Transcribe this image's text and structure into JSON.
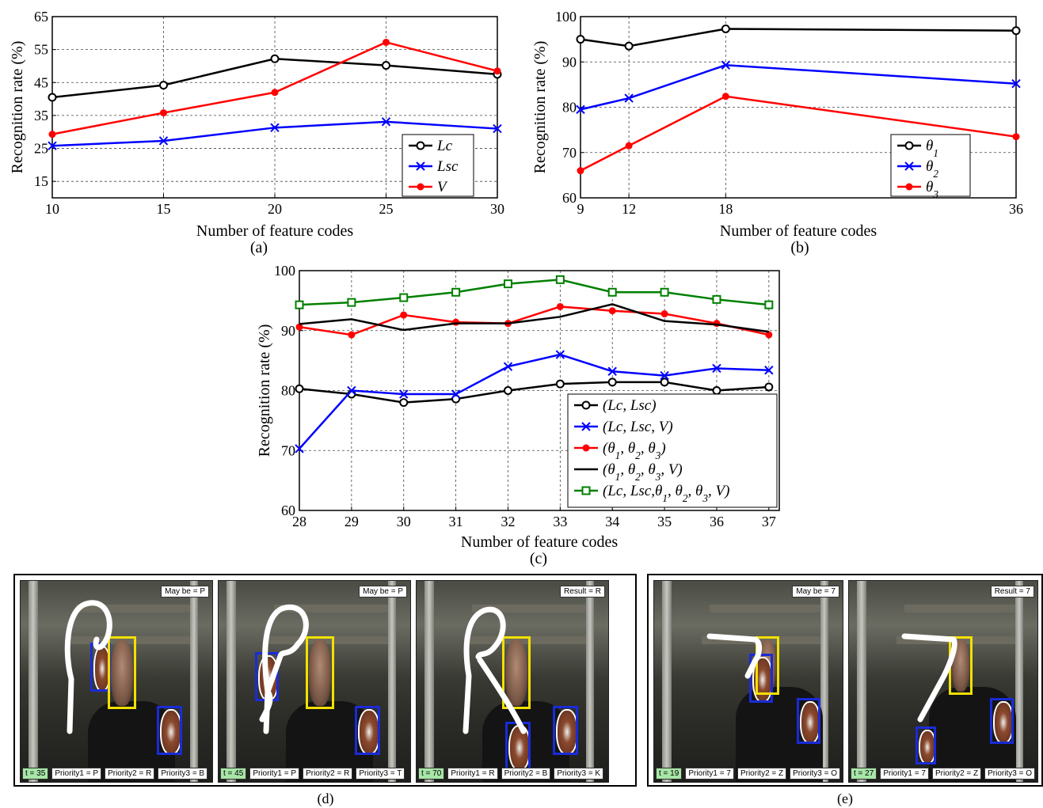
{
  "chart_data": [
    {
      "id": "a",
      "type": "line",
      "caption": "(a)",
      "xlabel": "Number of feature codes",
      "ylabel": "Recognition rate (%)",
      "x": [
        10,
        15,
        20,
        25,
        30
      ],
      "xticks": [
        "10",
        "15",
        "20",
        "25",
        "30"
      ],
      "xlim": [
        10,
        30
      ],
      "ylim": [
        10,
        65
      ],
      "yticks": [
        15,
        25,
        35,
        45,
        55,
        65
      ],
      "grid": true,
      "legend_position": "bottom-right",
      "series": [
        {
          "name": "Lc",
          "color": "#000000",
          "marker": "circle",
          "values": [
            40.5,
            44.2,
            52.2,
            50.2,
            47.5
          ]
        },
        {
          "name": "Lsc",
          "color": "#0000ff",
          "marker": "x",
          "values": [
            25.8,
            27.3,
            31.3,
            33.1,
            31.0
          ]
        },
        {
          "name": "V",
          "color": "#ff0000",
          "marker": "dot",
          "values": [
            29.3,
            35.8,
            42.0,
            57.2,
            48.5
          ]
        }
      ]
    },
    {
      "id": "b",
      "type": "line",
      "caption": "(b)",
      "xlabel": "Number of feature codes",
      "ylabel": "Recognition rate (%)",
      "x": [
        9,
        12,
        18,
        36
      ],
      "xticks": [
        "9",
        "12",
        "18",
        "36"
      ],
      "xlim": [
        9,
        36
      ],
      "ylim": [
        60,
        100
      ],
      "yticks": [
        60,
        70,
        80,
        90,
        100
      ],
      "grid": true,
      "legend_position": "bottom-right",
      "series": [
        {
          "name": "θ1",
          "color": "#000000",
          "marker": "circle",
          "values": [
            95.0,
            93.5,
            97.3,
            96.9
          ]
        },
        {
          "name": "θ2",
          "color": "#0000ff",
          "marker": "x",
          "values": [
            79.5,
            82.0,
            89.3,
            85.2
          ]
        },
        {
          "name": "θ3",
          "color": "#ff0000",
          "marker": "dot",
          "values": [
            66.0,
            71.5,
            82.4,
            73.5
          ]
        }
      ]
    },
    {
      "id": "c",
      "type": "line",
      "caption": "(c)",
      "xlabel": "Number of feature codes",
      "ylabel": "Recognition rate (%)",
      "x": [
        28,
        29,
        30,
        31,
        32,
        33,
        34,
        35,
        36,
        37
      ],
      "xticks": [
        "28",
        "29",
        "30",
        "31",
        "32",
        "33",
        "34",
        "35",
        "36",
        "37"
      ],
      "xlim": [
        28,
        37.2
      ],
      "ylim": [
        60,
        100
      ],
      "yticks": [
        60,
        70,
        80,
        90,
        100
      ],
      "grid": true,
      "legend_position": "bottom-right",
      "series": [
        {
          "name": "(Lc, Lsc)",
          "color": "#000000",
          "marker": "circle",
          "values": [
            80.3,
            79.4,
            78.0,
            78.6,
            80.0,
            81.1,
            81.4,
            81.4,
            80.0,
            80.6
          ]
        },
        {
          "name": "(Lc, Lsc, V)",
          "color": "#0000ff",
          "marker": "x",
          "values": [
            70.3,
            80.0,
            79.4,
            79.4,
            84.0,
            86.0,
            83.2,
            82.5,
            83.7,
            83.4
          ]
        },
        {
          "name": "(θ1, θ2, θ3)",
          "color": "#ff0000",
          "marker": "dot",
          "values": [
            90.6,
            89.3,
            92.6,
            91.4,
            91.2,
            94.0,
            93.3,
            92.8,
            91.2,
            89.3
          ]
        },
        {
          "name": "(θ1, θ2, θ3, V)",
          "color": "#000000",
          "marker": "none",
          "values": [
            91.1,
            91.9,
            90.1,
            91.2,
            91.2,
            92.3,
            94.4,
            91.6,
            91.0,
            89.8
          ]
        },
        {
          "name": "(Lc, Lsc,θ1, θ2, θ3, V)",
          "color": "#008000",
          "marker": "square",
          "values": [
            94.3,
            94.7,
            95.5,
            96.4,
            97.8,
            98.5,
            96.4,
            96.4,
            95.2,
            94.3
          ]
        }
      ]
    }
  ],
  "panel_d": {
    "caption": "(d)",
    "frames": [
      {
        "top_label": "May be = P",
        "time": "t = 35",
        "priorities": [
          "Priority1 = P",
          "Priority2 = R",
          "Priority3 = B"
        ]
      },
      {
        "top_label": "May be = P",
        "time": "t = 45",
        "priorities": [
          "Priority1 = P",
          "Priority2 = R",
          "Priority3 = T"
        ]
      },
      {
        "top_label": "Result = R",
        "time": "t = 70",
        "priorities": [
          "Priority1 = R",
          "Priority2 = B",
          "Priority3 = K"
        ]
      }
    ]
  },
  "panel_e": {
    "caption": "(e)",
    "frames": [
      {
        "top_label": "May be = 7",
        "time": "t = 19",
        "priorities": [
          "Priority1 = 7",
          "Priority2 = Z",
          "Priority3 = O"
        ]
      },
      {
        "top_label": "Result = 7",
        "time": "t = 27",
        "priorities": [
          "Priority1 = 7",
          "Priority2 = Z",
          "Priority3 = O"
        ]
      }
    ]
  }
}
